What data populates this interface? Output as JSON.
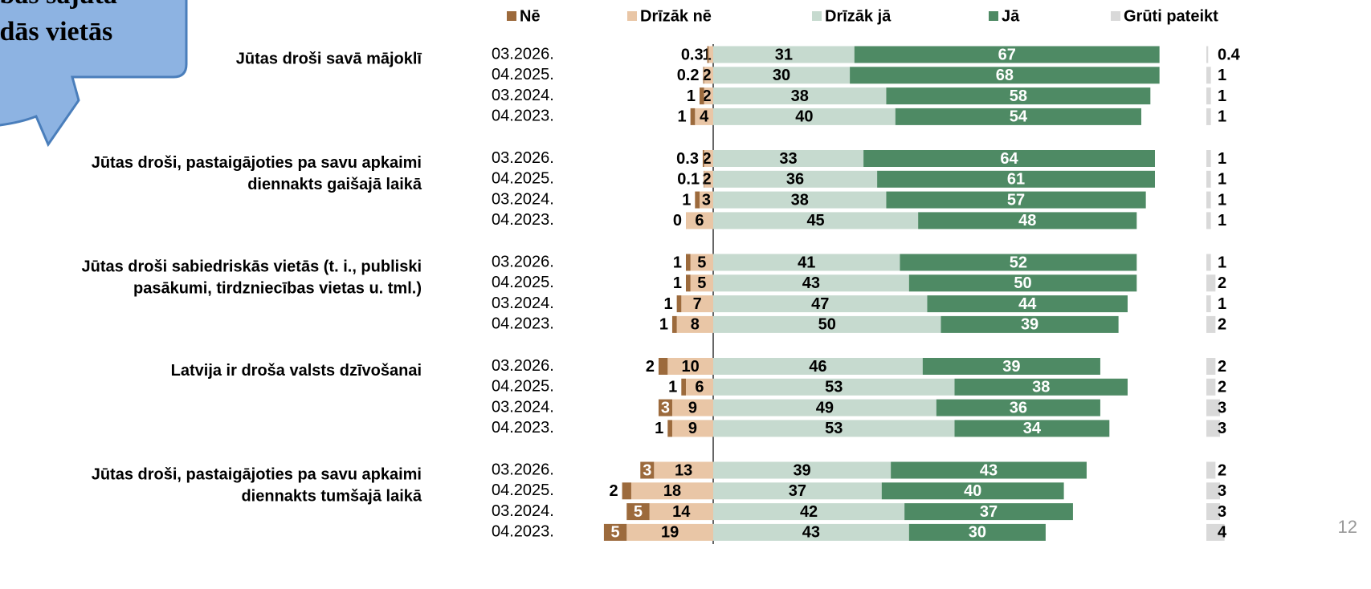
{
  "callout": [
    "ības sajūta",
    "idās vietās"
  ],
  "page_number": "12",
  "chart_data": {
    "type": "bar",
    "orientation": "horizontal",
    "stacked": "diverging",
    "groups": [
      [
        "Jūtas droši savā mājoklī"
      ],
      [
        "Jūtas droši, pastaigājoties pa savu apkaimi",
        "diennakts gaišajā laikā"
      ],
      [
        "Jūtas droši sabiedriskās vietās (t. i., publiski",
        "pasākumi, tirdzniecības vietas u. tml.)"
      ],
      [
        "Latvija ir droša valsts dzīvošanai"
      ],
      [
        "Jūtas droši, pastaigājoties pa savu apkaimi",
        "diennakts tumšajā laikā"
      ]
    ],
    "categories": [
      "03.2026.",
      "04.2025.",
      "03.2024.",
      "04.2023.",
      "03.2026.",
      "04.2025.",
      "03.2024.",
      "04.2023.",
      "03.2026.",
      "04.2025.",
      "03.2024.",
      "04.2023.",
      "03.2026.",
      "04.2025.",
      "03.2024.",
      "04.2023.",
      "03.2026.",
      "04.2025.",
      "03.2024.",
      "04.2023."
    ],
    "series": [
      {
        "name": "Nē",
        "color": "#9c6a3c",
        "side": "negative",
        "values": [
          0.3,
          0.2,
          1,
          1,
          0.3,
          0.1,
          1,
          0,
          1,
          1,
          1,
          1,
          2,
          1,
          3,
          1,
          3,
          2,
          5,
          5
        ]
      },
      {
        "name": "Drīzāk nē",
        "color": "#e9c6a6",
        "side": "negative",
        "values": [
          1,
          2,
          2,
          4,
          2,
          2,
          3,
          6,
          5,
          5,
          7,
          8,
          10,
          6,
          9,
          9,
          13,
          18,
          14,
          19
        ]
      },
      {
        "name": "Drīzāk jā",
        "color": "#c6dacf",
        "side": "positive",
        "values": [
          31,
          30,
          38,
          40,
          33,
          36,
          38,
          45,
          41,
          43,
          47,
          50,
          46,
          53,
          49,
          53,
          39,
          37,
          42,
          43
        ]
      },
      {
        "name": "Jā",
        "color": "#4e8a64",
        "side": "positive",
        "values": [
          67,
          68,
          58,
          54,
          64,
          61,
          57,
          48,
          52,
          50,
          44,
          39,
          39,
          38,
          36,
          34,
          43,
          40,
          37,
          30
        ]
      },
      {
        "name": "Grūti pateikt",
        "color": "#d9d9d9",
        "side": "separate",
        "values": [
          0.4,
          1,
          1,
          1,
          1,
          1,
          1,
          1,
          1,
          2,
          1,
          2,
          2,
          2,
          3,
          3,
          2,
          3,
          3,
          4
        ]
      }
    ]
  }
}
